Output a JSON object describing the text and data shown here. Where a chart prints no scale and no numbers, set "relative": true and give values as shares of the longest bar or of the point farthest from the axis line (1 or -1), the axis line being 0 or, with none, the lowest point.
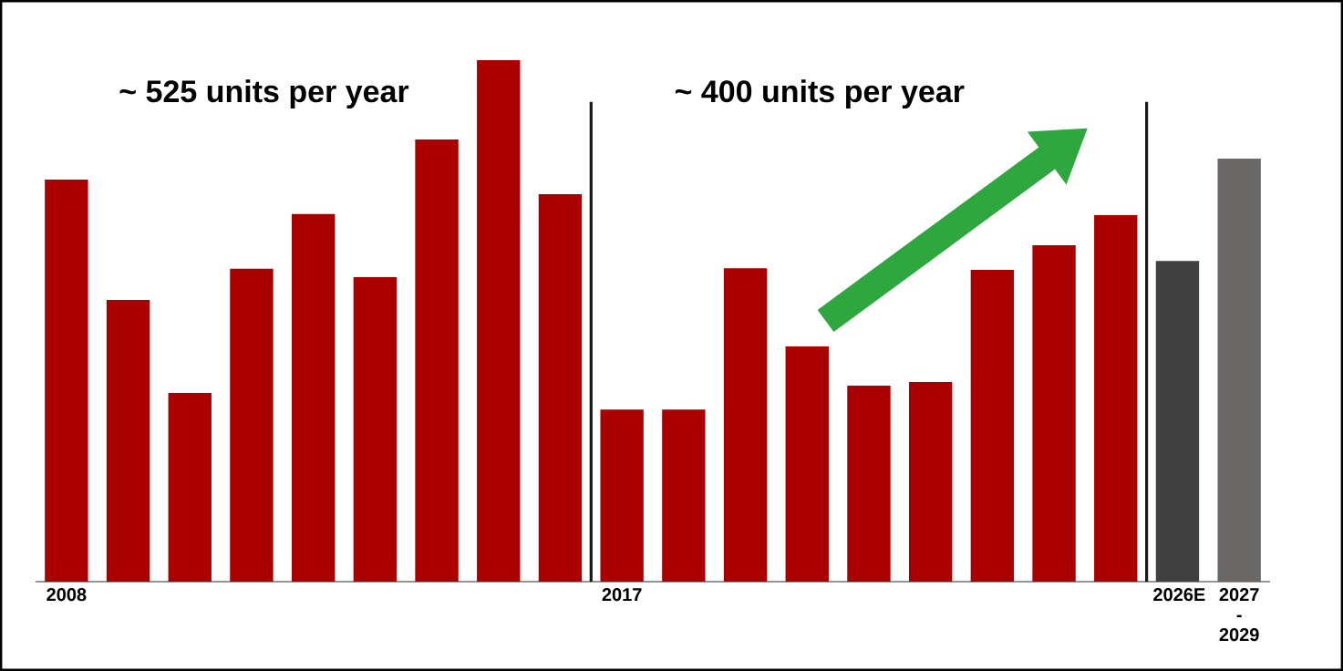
{
  "chart_data": {
    "type": "bar",
    "relative": true,
    "categories": [
      "2008",
      null,
      null,
      null,
      null,
      null,
      null,
      null,
      null,
      "2017",
      null,
      null,
      null,
      null,
      null,
      null,
      null,
      null,
      "2026E",
      "2027 - 2029"
    ],
    "values": [
      0.771,
      0.54,
      0.362,
      0.6,
      0.705,
      0.584,
      0.848,
      1,
      0.743,
      0.33,
      0.33,
      0.601,
      0.451,
      0.376,
      0.383,
      0.598,
      0.645,
      0.703,
      0.615,
      0.811
    ],
    "colors": [
      "#aa0000",
      "#aa0000",
      "#aa0000",
      "#aa0000",
      "#aa0000",
      "#aa0000",
      "#aa0000",
      "#aa0000",
      "#aa0000",
      "#aa0000",
      "#aa0000",
      "#aa0000",
      "#aa0000",
      "#aa0000",
      "#aa0000",
      "#aa0000",
      "#aa0000",
      "#aa0000",
      "#404040",
      "#6b6767"
    ],
    "annotations": [
      "~ 525 units per year",
      "~ 400 units per year"
    ]
  }
}
